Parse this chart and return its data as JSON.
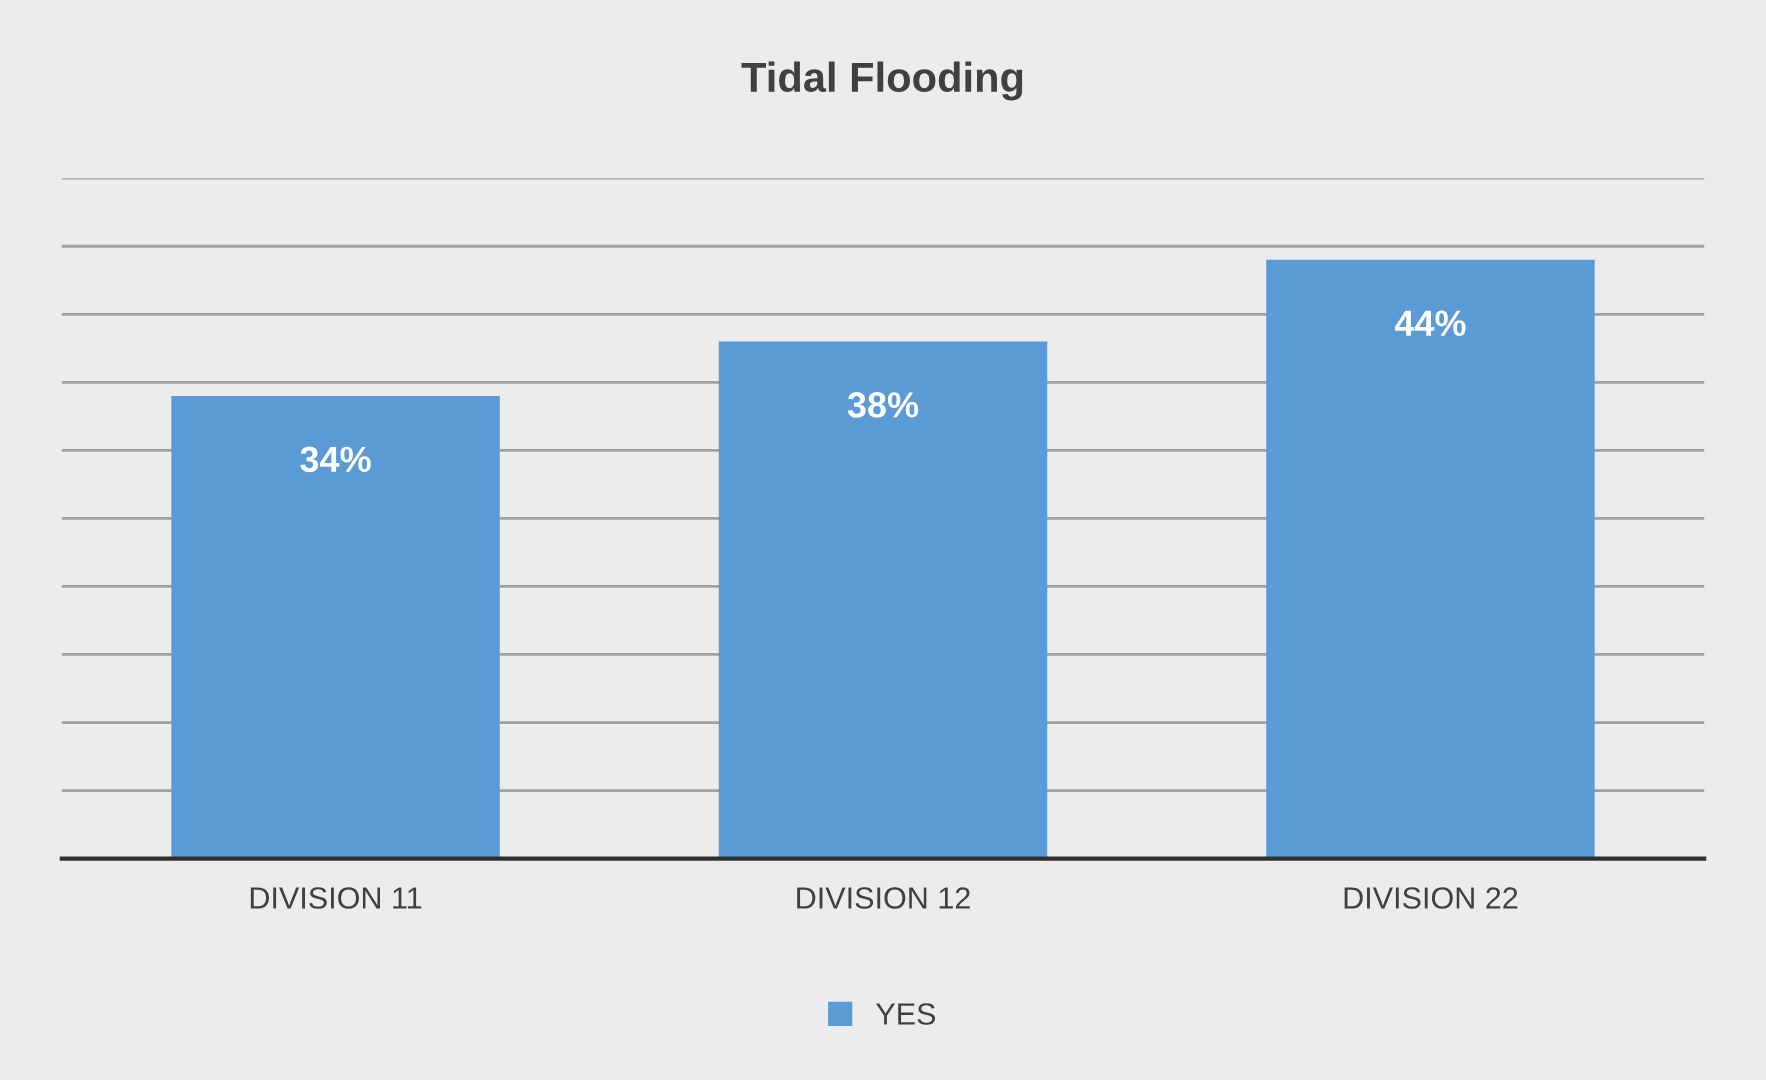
{
  "chart_data": {
    "type": "bar",
    "title": "Tidal Flooding",
    "categories": [
      "DIVISION 11",
      "DIVISION 12",
      "DIVISION 22"
    ],
    "series": [
      {
        "name": "YES",
        "color": "#5b9bd5",
        "values": [
          34,
          38,
          44
        ],
        "value_labels": [
          "34%",
          "38%",
          "44%"
        ]
      }
    ],
    "ylim": [
      0,
      50
    ],
    "yticks": [
      {
        "value": 0,
        "label": null
      },
      {
        "value": 5,
        "label": null
      },
      {
        "value": 10,
        "label": null
      },
      {
        "value": 15,
        "label": null
      },
      {
        "value": 20,
        "label": null
      },
      {
        "value": 25,
        "label": null
      },
      {
        "value": 30,
        "label": null
      },
      {
        "value": 35,
        "label": null
      },
      {
        "value": 40,
        "label": null
      },
      {
        "value": 45,
        "label": null
      },
      {
        "value": 50,
        "label": null
      }
    ],
    "tick_labels": "x",
    "grid": "y",
    "legend": "bottom"
  }
}
